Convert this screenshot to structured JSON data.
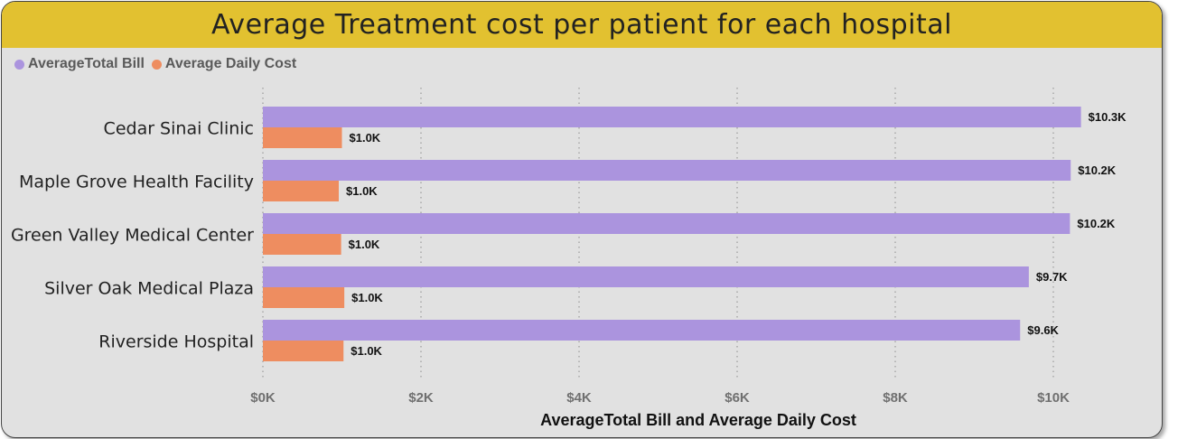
{
  "chart_data": {
    "type": "bar",
    "orientation": "horizontal",
    "title": "Average Treatment cost per patient for each hospital",
    "categories": [
      "Cedar Sinai Clinic",
      "Maple Grove Health Facility",
      "Green Valley Medical Center",
      "Silver Oak Medical Plaza",
      "Riverside Hospital"
    ],
    "series": [
      {
        "name": "AverageTotal Bill",
        "color": "#ab94de",
        "values": [
          10350,
          10220,
          10210,
          9690,
          9580
        ],
        "labels": [
          "$10.3K",
          "$10.2K",
          "$10.2K",
          "$9.7K",
          "$9.6K"
        ]
      },
      {
        "name": "Average Daily Cost",
        "color": "#ee8d60",
        "values": [
          1000,
          960,
          990,
          1030,
          1020
        ],
        "labels": [
          "$1.0K",
          "$1.0K",
          "$1.0K",
          "$1.0K",
          "$1.0K"
        ]
      }
    ],
    "xlabel": "AverageTotal Bill and Average Daily Cost",
    "xlim": [
      0,
      10800
    ],
    "xticks": [
      0,
      2000,
      4000,
      6000,
      8000,
      10000
    ],
    "xtick_labels": [
      "$0K",
      "$2K",
      "$4K",
      "$6K",
      "$8K",
      "$10K"
    ],
    "grid": true,
    "legend_position": "top-left"
  },
  "colors": {
    "title_bar": "#e2c130",
    "background": "#e1e1e1"
  }
}
